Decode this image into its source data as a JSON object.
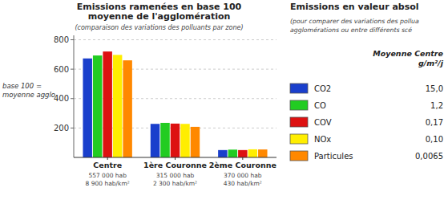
{
  "chart_data": [
    {
      "type": "bar",
      "title": [
        "Emissions ramenées en base 100",
        "moyenne de l'agglomération"
      ],
      "subtitle": "(comparaison des variations des polluants par zone)",
      "y_label": "base 100 =\nmoyenne agglo",
      "categories": [
        "Centre",
        "1ère Couronne",
        "2ème Couronne"
      ],
      "category_details": [
        [
          "557 000 hab",
          "8 900 hab/km²"
        ],
        [
          "315 000 hab",
          "2 300 hab/km²"
        ],
        [
          "370 000 hab",
          "430 hab/km²"
        ]
      ],
      "series": [
        {
          "name": "CO2",
          "color": "#1a3fcc",
          "values": [
            673,
            228,
            50
          ]
        },
        {
          "name": "CO",
          "color": "#22cc22",
          "values": [
            693,
            235,
            53
          ]
        },
        {
          "name": "COV",
          "color": "#dd1111",
          "values": [
            720,
            230,
            50
          ]
        },
        {
          "name": "NOx",
          "color": "#ffee00",
          "values": [
            697,
            228,
            55
          ]
        },
        {
          "name": "Particules",
          "color": "#ff8800",
          "values": [
            660,
            208,
            54
          ]
        }
      ],
      "ylim": [
        0,
        830
      ],
      "yticks": [
        200,
        400,
        600,
        800
      ],
      "grid": true
    },
    {
      "type": "table",
      "title": "Emissions en valeur absol",
      "subtitle": [
        "(pour comparer des variations des pollua",
        "agglomérations ou entre différents scé"
      ],
      "column_label": [
        "Moyenne Centre",
        "g/m²/j"
      ],
      "values": [
        15.0,
        1.2,
        0.17,
        0.1,
        0.0065
      ],
      "value_labels": [
        "15,0",
        "1,2",
        "0,17",
        "0,10",
        "0,0065"
      ]
    }
  ]
}
